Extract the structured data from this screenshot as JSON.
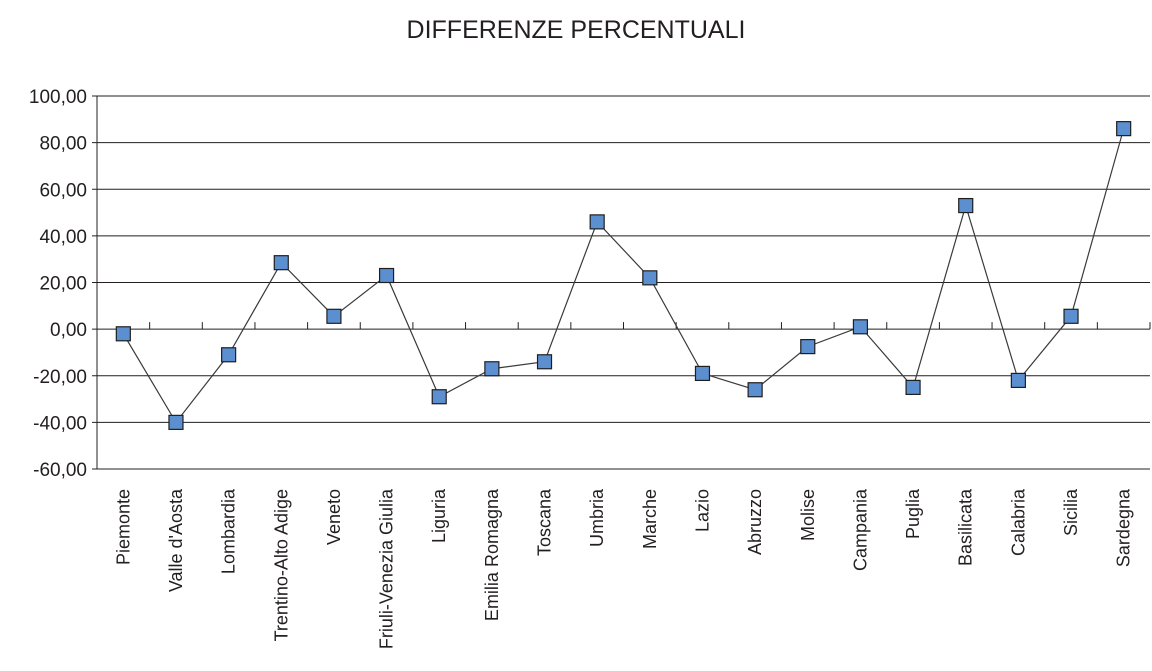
{
  "chart_data": {
    "type": "line",
    "title": "DIFFERENZE PERCENTUALI",
    "xlabel": "",
    "ylabel": "",
    "ylim": [
      -60,
      100
    ],
    "ytick_step": 20,
    "yticks": [
      "100,00",
      "80,00",
      "60,00",
      "40,00",
      "20,00",
      "0,00",
      "-20,00",
      "-40,00",
      "-60,00"
    ],
    "grid": true,
    "legend": "none",
    "categories": [
      "Piemonte",
      "Valle d'Aosta",
      "Lombardia",
      "Trentino-Alto Adige",
      "Veneto",
      "Friuli-Venezia Giulia",
      "Liguria",
      "Emilia Romagna",
      "Toscana",
      "Umbria",
      "Marche",
      "Lazio",
      "Abruzzo",
      "Molise",
      "Campania",
      "Puglia",
      "Basilicata",
      "Calabria",
      "Sicilia",
      "Sardegna"
    ],
    "series": [
      {
        "values": [
          -2,
          -40,
          -11,
          28.5,
          5.5,
          23,
          -29,
          -17,
          -14,
          46,
          22,
          -19,
          -26,
          -7.5,
          1,
          -25,
          53,
          -22,
          5.5,
          86
        ]
      }
    ],
    "colors": {
      "marker_fill": "#5b8fd0",
      "marker_stroke": "#1f1f1f",
      "line": "#3a3a3a",
      "grid": "#231f20",
      "text": "#231f20"
    }
  }
}
